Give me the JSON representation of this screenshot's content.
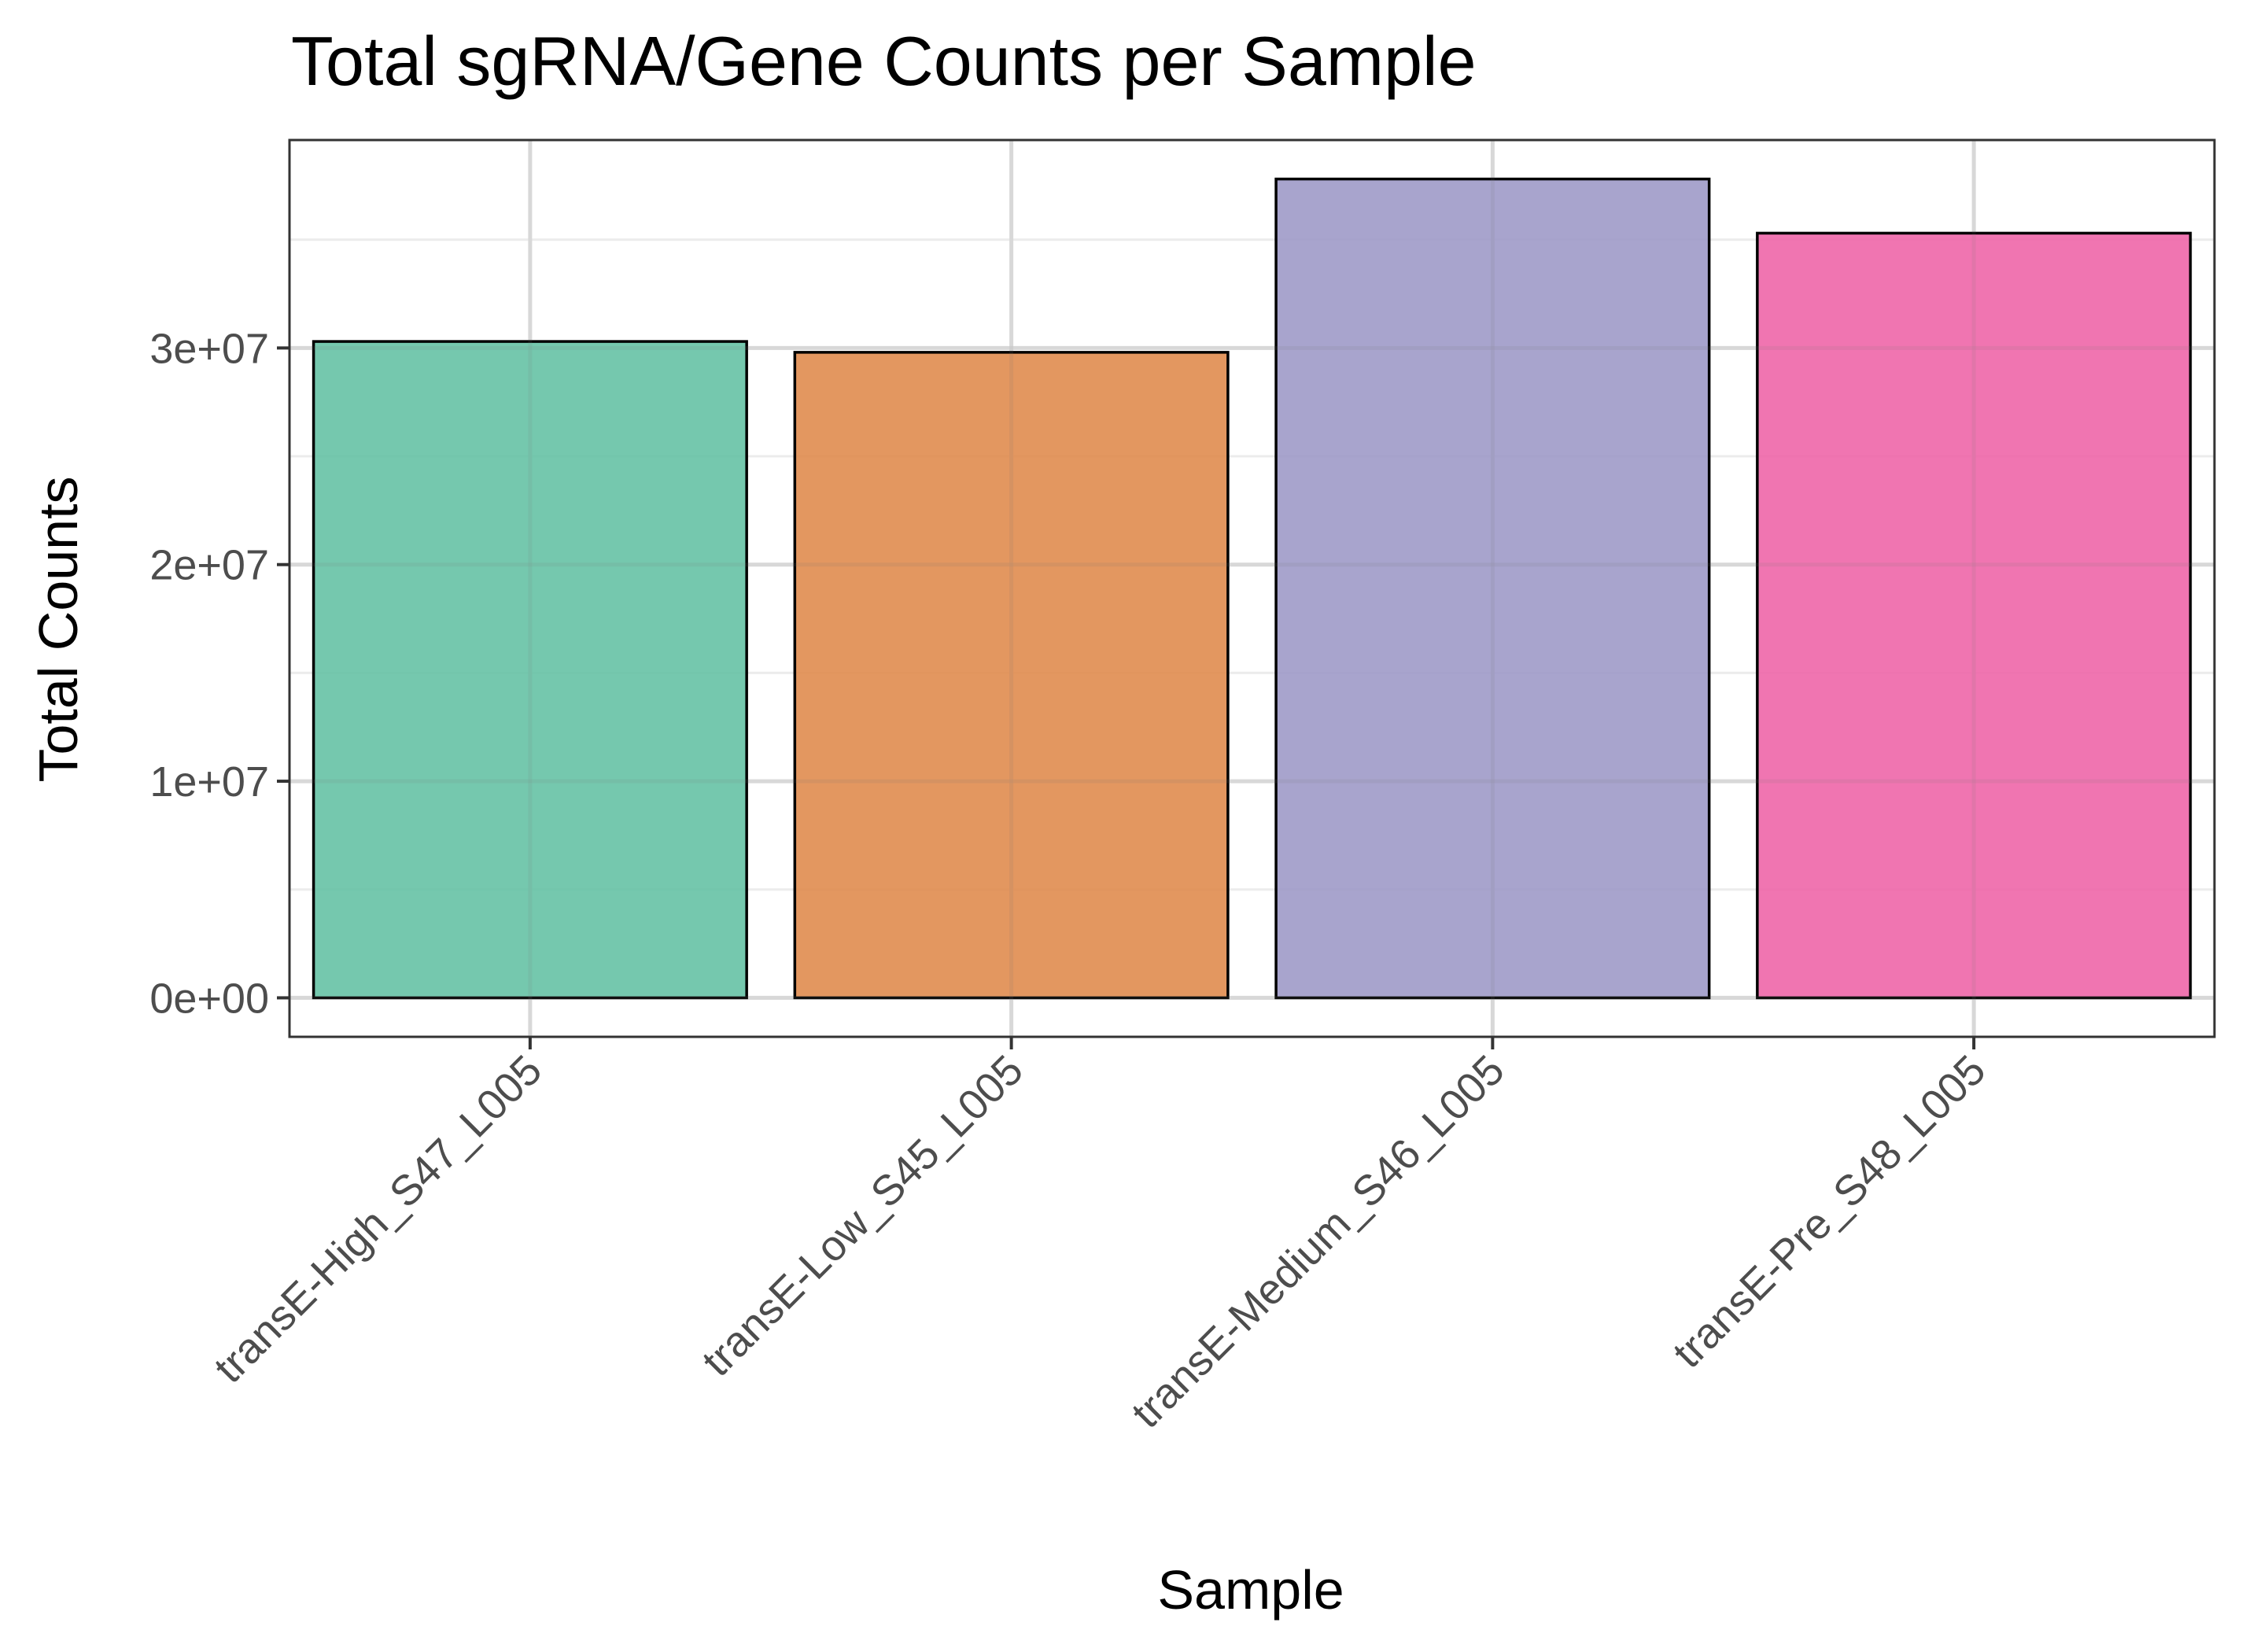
{
  "chart_data": {
    "type": "bar",
    "title": "Total sgRNA/Gene Counts per Sample",
    "xlabel": "Sample",
    "ylabel": "Total Counts",
    "categories": [
      "transE-High_S47_L005",
      "transE-Low_S45_L005",
      "transE-Medium_S46_L005",
      "transE-Pre_S48_L005"
    ],
    "values": [
      30300000,
      29800000,
      37800000,
      35300000
    ],
    "colors": [
      "#66c2a5",
      "#e08c4f",
      "#9e9ac8",
      "#ee66a8"
    ],
    "ylim": [
      -1800000,
      39600000
    ],
    "yticks": [
      0,
      10000000,
      20000000,
      30000000
    ],
    "ytick_labels": [
      "0e+00",
      "1e+07",
      "2e+07",
      "3e+07"
    ],
    "y_minor_ticks": [
      5000000,
      15000000,
      25000000,
      35000000
    ],
    "grid": true,
    "legend": "none"
  }
}
